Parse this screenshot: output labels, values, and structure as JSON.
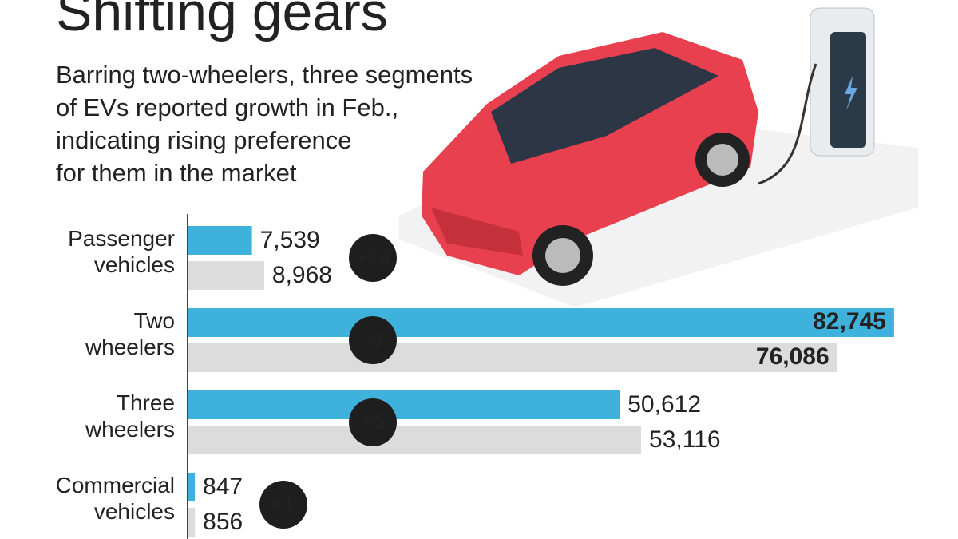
{
  "chart_data": {
    "type": "hbar",
    "title": "Shifting gears",
    "subtitle": [
      "Barring two-wheelers, three segments",
      "of EVs reported growth in Feb.,",
      "indicating rising preference",
      "for them in the market"
    ],
    "categories": [
      "Passenger vehicles",
      "Two wheelers",
      "Three wheelers",
      "Commercial vehicles"
    ],
    "series": [
      {
        "color": "#3eb1dc",
        "values": [
          7539,
          82745,
          50612,
          847
        ],
        "value_labels": [
          "7,539",
          "82,745",
          "50,612",
          "847"
        ]
      },
      {
        "color": "#dcdcdc",
        "values": [
          8968,
          76086,
          53116,
          856
        ],
        "value_labels": [
          "8,968",
          "76,086",
          "53,116",
          "856"
        ]
      }
    ],
    "changes": [
      "+19",
      "-8",
      "+5",
      "+1"
    ],
    "xlim": [
      0,
      85000
    ]
  }
}
